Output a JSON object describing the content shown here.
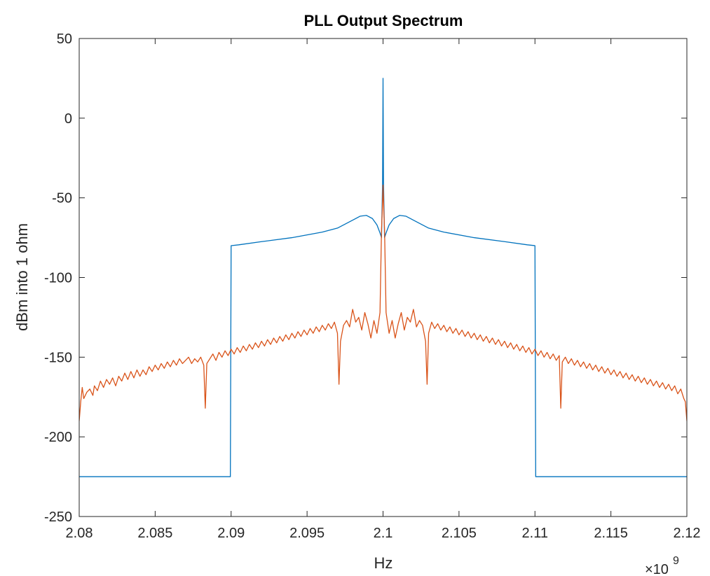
{
  "chart_data": {
    "type": "line",
    "title": "PLL Output Spectrum",
    "xlabel": "Hz",
    "ylabel": "dBm into 1 ohm",
    "x_exponent_label": "×10",
    "x_exponent_power": "9",
    "xlim": [
      2.08,
      2.12
    ],
    "ylim": [
      -250,
      50
    ],
    "x_scale_factor": 1000000000,
    "xticks": [
      2.08,
      2.085,
      2.09,
      2.095,
      2.1,
      2.105,
      2.11,
      2.115,
      2.12
    ],
    "xtick_labels": [
      "2.08",
      "2.085",
      "2.09",
      "2.095",
      "2.1",
      "2.105",
      "2.11",
      "2.115",
      "2.12"
    ],
    "yticks": [
      50,
      0,
      -50,
      -100,
      -150,
      -200,
      -250
    ],
    "ytick_labels": [
      "50",
      "0",
      "-50",
      "-100",
      "-150",
      "-200",
      "-250"
    ],
    "grid": false,
    "series": [
      {
        "color": "#0072BD",
        "points": [
          [
            2.08,
            -225
          ],
          [
            2.0899,
            -225
          ],
          [
            2.08995,
            -225
          ],
          [
            2.09,
            -80
          ],
          [
            2.0905,
            -79.5
          ],
          [
            2.092,
            -77.5
          ],
          [
            2.094,
            -75
          ],
          [
            2.096,
            -71.5
          ],
          [
            2.097,
            -69
          ],
          [
            2.098,
            -64
          ],
          [
            2.0985,
            -61.5
          ],
          [
            2.0989,
            -61
          ],
          [
            2.0993,
            -63
          ],
          [
            2.0996,
            -67
          ],
          [
            2.0998,
            -72
          ],
          [
            2.0999,
            -75
          ],
          [
            2.09997,
            -40
          ],
          [
            2.1,
            25
          ],
          [
            2.10003,
            -40
          ],
          [
            2.1001,
            -75
          ],
          [
            2.1002,
            -72
          ],
          [
            2.1004,
            -67
          ],
          [
            2.1007,
            -63
          ],
          [
            2.1011,
            -61
          ],
          [
            2.1015,
            -61.5
          ],
          [
            2.102,
            -64
          ],
          [
            2.103,
            -69
          ],
          [
            2.104,
            -71.5
          ],
          [
            2.106,
            -75
          ],
          [
            2.108,
            -77.5
          ],
          [
            2.1095,
            -79.5
          ],
          [
            2.11,
            -80
          ],
          [
            2.11005,
            -225
          ],
          [
            2.1101,
            -225
          ],
          [
            2.12,
            -225
          ]
        ]
      },
      {
        "color": "#D95319",
        "points": [
          [
            2.08,
            -190
          ],
          [
            2.0801,
            -178
          ],
          [
            2.0802,
            -169
          ],
          [
            2.0803,
            -176
          ],
          [
            2.0805,
            -172
          ],
          [
            2.0807,
            -170
          ],
          [
            2.0809,
            -174
          ],
          [
            2.081,
            -168
          ],
          [
            2.0812,
            -171
          ],
          [
            2.0814,
            -165
          ],
          [
            2.0816,
            -169
          ],
          [
            2.0818,
            -164
          ],
          [
            2.082,
            -167
          ],
          [
            2.0822,
            -163
          ],
          [
            2.0824,
            -168
          ],
          [
            2.0826,
            -162
          ],
          [
            2.0828,
            -165
          ],
          [
            2.083,
            -160
          ],
          [
            2.0832,
            -164
          ],
          [
            2.0834,
            -159
          ],
          [
            2.0836,
            -163
          ],
          [
            2.0838,
            -158
          ],
          [
            2.084,
            -162
          ],
          [
            2.0842,
            -158
          ],
          [
            2.0844,
            -161
          ],
          [
            2.0846,
            -156
          ],
          [
            2.0848,
            -159
          ],
          [
            2.085,
            -155
          ],
          [
            2.0852,
            -158
          ],
          [
            2.0854,
            -154
          ],
          [
            2.0856,
            -157
          ],
          [
            2.0858,
            -153
          ],
          [
            2.086,
            -156
          ],
          [
            2.0862,
            -152
          ],
          [
            2.0864,
            -155
          ],
          [
            2.0866,
            -151
          ],
          [
            2.0868,
            -154
          ],
          [
            2.087,
            -152
          ],
          [
            2.0872,
            -150
          ],
          [
            2.0874,
            -154
          ],
          [
            2.0876,
            -151
          ],
          [
            2.0878,
            -153
          ],
          [
            2.088,
            -150
          ],
          [
            2.0882,
            -155
          ],
          [
            2.0883,
            -182
          ],
          [
            2.0884,
            -154
          ],
          [
            2.0886,
            -151
          ],
          [
            2.0888,
            -148
          ],
          [
            2.089,
            -152
          ],
          [
            2.0892,
            -147
          ],
          [
            2.0894,
            -150
          ],
          [
            2.0896,
            -146
          ],
          [
            2.0898,
            -149
          ],
          [
            2.09,
            -145
          ],
          [
            2.0902,
            -148
          ],
          [
            2.0904,
            -144
          ],
          [
            2.0906,
            -147
          ],
          [
            2.0908,
            -143
          ],
          [
            2.091,
            -146
          ],
          [
            2.0912,
            -142
          ],
          [
            2.0914,
            -145
          ],
          [
            2.0916,
            -141
          ],
          [
            2.0918,
            -144
          ],
          [
            2.092,
            -140
          ],
          [
            2.0922,
            -143
          ],
          [
            2.0924,
            -139
          ],
          [
            2.0926,
            -142
          ],
          [
            2.0928,
            -138
          ],
          [
            2.093,
            -141
          ],
          [
            2.0932,
            -137
          ],
          [
            2.0934,
            -140
          ],
          [
            2.0936,
            -136
          ],
          [
            2.0938,
            -139
          ],
          [
            2.094,
            -135
          ],
          [
            2.0942,
            -138
          ],
          [
            2.0944,
            -134
          ],
          [
            2.0946,
            -137
          ],
          [
            2.0948,
            -133
          ],
          [
            2.095,
            -136
          ],
          [
            2.0952,
            -132
          ],
          [
            2.0954,
            -135
          ],
          [
            2.0956,
            -131
          ],
          [
            2.0958,
            -134
          ],
          [
            2.096,
            -130
          ],
          [
            2.0962,
            -133
          ],
          [
            2.0964,
            -129
          ],
          [
            2.0966,
            -132
          ],
          [
            2.0968,
            -128
          ],
          [
            2.097,
            -135
          ],
          [
            2.0971,
            -167
          ],
          [
            2.0972,
            -140
          ],
          [
            2.0974,
            -130
          ],
          [
            2.0976,
            -127
          ],
          [
            2.0978,
            -131
          ],
          [
            2.098,
            -120
          ],
          [
            2.0982,
            -128
          ],
          [
            2.0984,
            -125
          ],
          [
            2.0986,
            -133
          ],
          [
            2.0988,
            -122
          ],
          [
            2.099,
            -129
          ],
          [
            2.0992,
            -138
          ],
          [
            2.0994,
            -127
          ],
          [
            2.0996,
            -135
          ],
          [
            2.0998,
            -122
          ],
          [
            2.0999,
            -70
          ],
          [
            2.09995,
            -58
          ],
          [
            2.1,
            -42
          ],
          [
            2.10005,
            -58
          ],
          [
            2.1001,
            -70
          ],
          [
            2.1002,
            -122
          ],
          [
            2.1004,
            -135
          ],
          [
            2.1006,
            -127
          ],
          [
            2.1008,
            -138
          ],
          [
            2.101,
            -129
          ],
          [
            2.1012,
            -122
          ],
          [
            2.1014,
            -133
          ],
          [
            2.1016,
            -125
          ],
          [
            2.1018,
            -128
          ],
          [
            2.102,
            -120
          ],
          [
            2.1022,
            -131
          ],
          [
            2.1024,
            -127
          ],
          [
            2.1026,
            -130
          ],
          [
            2.1028,
            -140
          ],
          [
            2.1029,
            -167
          ],
          [
            2.103,
            -135
          ],
          [
            2.1032,
            -128
          ],
          [
            2.1034,
            -132
          ],
          [
            2.1036,
            -129
          ],
          [
            2.1038,
            -133
          ],
          [
            2.104,
            -130
          ],
          [
            2.1042,
            -134
          ],
          [
            2.1044,
            -131
          ],
          [
            2.1046,
            -135
          ],
          [
            2.1048,
            -132
          ],
          [
            2.105,
            -136
          ],
          [
            2.1052,
            -133
          ],
          [
            2.1054,
            -137
          ],
          [
            2.1056,
            -134
          ],
          [
            2.1058,
            -138
          ],
          [
            2.106,
            -135
          ],
          [
            2.1062,
            -139
          ],
          [
            2.1064,
            -136
          ],
          [
            2.1066,
            -140
          ],
          [
            2.1068,
            -137
          ],
          [
            2.107,
            -141
          ],
          [
            2.1072,
            -138
          ],
          [
            2.1074,
            -142
          ],
          [
            2.1076,
            -139
          ],
          [
            2.1078,
            -143
          ],
          [
            2.108,
            -140
          ],
          [
            2.1082,
            -144
          ],
          [
            2.1084,
            -141
          ],
          [
            2.1086,
            -145
          ],
          [
            2.1088,
            -142
          ],
          [
            2.109,
            -146
          ],
          [
            2.1092,
            -143
          ],
          [
            2.1094,
            -147
          ],
          [
            2.1096,
            -144
          ],
          [
            2.1098,
            -148
          ],
          [
            2.11,
            -145
          ],
          [
            2.1102,
            -149
          ],
          [
            2.1104,
            -146
          ],
          [
            2.1106,
            -150
          ],
          [
            2.1108,
            -147
          ],
          [
            2.111,
            -151
          ],
          [
            2.1112,
            -148
          ],
          [
            2.1114,
            -152
          ],
          [
            2.1116,
            -149
          ],
          [
            2.1117,
            -182
          ],
          [
            2.1118,
            -153
          ],
          [
            2.112,
            -150
          ],
          [
            2.1122,
            -154
          ],
          [
            2.1124,
            -151
          ],
          [
            2.1126,
            -155
          ],
          [
            2.1128,
            -152
          ],
          [
            2.113,
            -156
          ],
          [
            2.1132,
            -153
          ],
          [
            2.1134,
            -157
          ],
          [
            2.1136,
            -154
          ],
          [
            2.1138,
            -158
          ],
          [
            2.114,
            -155
          ],
          [
            2.1142,
            -159
          ],
          [
            2.1144,
            -156
          ],
          [
            2.1146,
            -160
          ],
          [
            2.1148,
            -157
          ],
          [
            2.115,
            -161
          ],
          [
            2.1152,
            -158
          ],
          [
            2.1154,
            -162
          ],
          [
            2.1156,
            -159
          ],
          [
            2.1158,
            -163
          ],
          [
            2.116,
            -160
          ],
          [
            2.1162,
            -164
          ],
          [
            2.1164,
            -161
          ],
          [
            2.1166,
            -165
          ],
          [
            2.1168,
            -162
          ],
          [
            2.117,
            -166
          ],
          [
            2.1172,
            -163
          ],
          [
            2.1174,
            -167
          ],
          [
            2.1176,
            -164
          ],
          [
            2.1178,
            -168
          ],
          [
            2.118,
            -165
          ],
          [
            2.1182,
            -169
          ],
          [
            2.1184,
            -166
          ],
          [
            2.1186,
            -170
          ],
          [
            2.1188,
            -167
          ],
          [
            2.119,
            -171
          ],
          [
            2.1192,
            -168
          ],
          [
            2.1194,
            -173
          ],
          [
            2.1196,
            -170
          ],
          [
            2.1198,
            -176
          ],
          [
            2.1199,
            -178
          ],
          [
            2.12,
            -190
          ]
        ]
      }
    ]
  }
}
